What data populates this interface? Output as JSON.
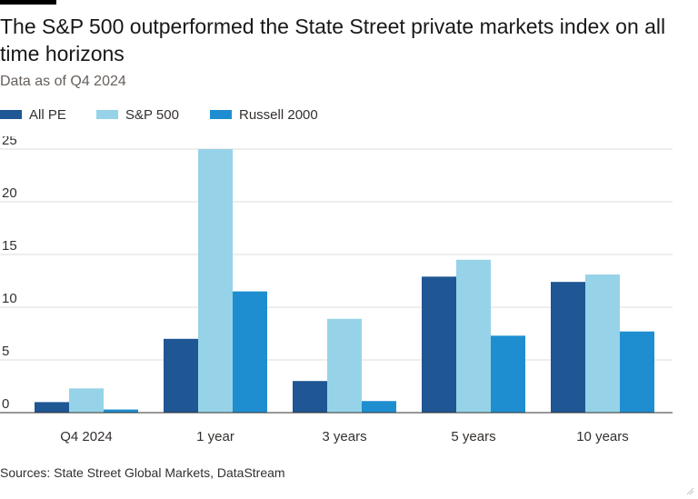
{
  "title": "The S&P 500 outperformed the State Street private markets index on all time horizons",
  "subtitle": "Data as of Q4 2024",
  "source": "Sources: State Street Global Markets, DataStream",
  "colors": {
    "all_pe": "#1f5694",
    "sp500": "#96d3e8",
    "russell2000": "#1f8ed0",
    "grid": "#e1dcd8",
    "axis": "#33302e"
  },
  "chart_data": {
    "type": "bar",
    "categories": [
      "Q4 2024",
      "1 year",
      "3 years",
      "5 years",
      "10 years"
    ],
    "series": [
      {
        "name": "All PE",
        "values": [
          1.0,
          7.0,
          3.0,
          12.9,
          12.4
        ]
      },
      {
        "name": "S&P 500",
        "values": [
          2.3,
          25.0,
          8.9,
          14.5,
          13.1
        ]
      },
      {
        "name": "Russell 2000",
        "values": [
          0.3,
          11.5,
          1.1,
          7.3,
          7.7
        ]
      }
    ],
    "yticks": [
      0,
      5,
      10,
      15,
      20,
      25
    ],
    "ylim": [
      0,
      27
    ],
    "grid": true,
    "legend_position": "top-left"
  }
}
